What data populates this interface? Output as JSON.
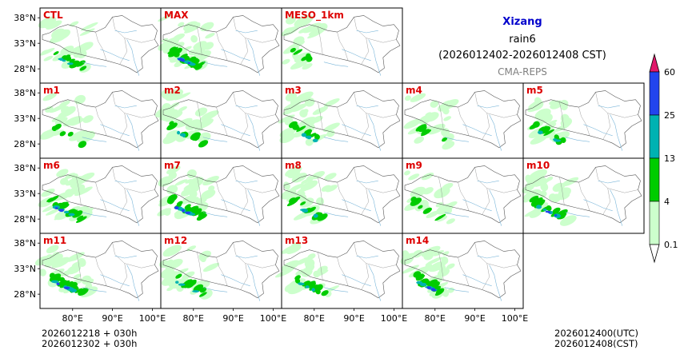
{
  "title": {
    "region": "Xizang",
    "variable": "rain6",
    "period": "(2026012402-2026012408 CST)",
    "model": "CMA-REPS"
  },
  "panels": [
    "CTL",
    "MAX",
    "MESO_1km",
    "m1",
    "m2",
    "m3",
    "m4",
    "m5",
    "m6",
    "m7",
    "m8",
    "m9",
    "m10",
    "m11",
    "m12",
    "m13",
    "m14"
  ],
  "panel_intensity": {
    "CTL": 2,
    "MAX": 4,
    "MESO_1km": 1,
    "m1": 1,
    "m2": 2,
    "m3": 2,
    "m4": 1,
    "m5": 2,
    "m6": 3,
    "m7": 3,
    "m8": 2,
    "m9": 1,
    "m10": 3,
    "m11": 3,
    "m12": 2,
    "m13": 2,
    "m14": 3
  },
  "lat_labels": [
    "38°N",
    "33°N",
    "28°N"
  ],
  "lon_labels": [
    "80°E",
    "90°E",
    "100°E"
  ],
  "colorbar": {
    "levels": [
      "0.1",
      "4",
      "13",
      "25",
      "60"
    ],
    "colors": [
      "#ccffcc",
      "#00cc00",
      "#00b2b2",
      "#2244ee",
      "#e0186a"
    ],
    "open_low_color": "#ffffff"
  },
  "footer_left": {
    "line1": "2026012218  +  030h",
    "line2": "2026012302  +  030h"
  },
  "footer_right": {
    "line1": "2026012400(UTC)",
    "line2": "2026012408(CST)"
  },
  "colors": {
    "panel_label": "#dd0000",
    "border": "#000000",
    "coast": "#555555",
    "river": "#7ab6d9"
  }
}
